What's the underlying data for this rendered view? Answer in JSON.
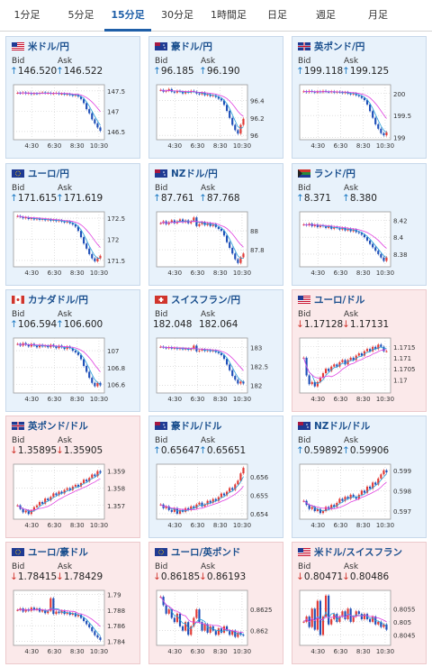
{
  "tabs": [
    {
      "label": "1分足",
      "active": false
    },
    {
      "label": "5分足",
      "active": false
    },
    {
      "label": "15分足",
      "active": true
    },
    {
      "label": "30分足",
      "active": false
    },
    {
      "label": "1時間足",
      "active": false
    },
    {
      "label": "日足",
      "active": false
    },
    {
      "label": "週足",
      "active": false
    },
    {
      "label": "月足",
      "active": false
    }
  ],
  "labels": {
    "bid": "Bid",
    "ask": "Ask"
  },
  "colors": {
    "up_bg": "#e8f2fb",
    "down_bg": "#fbe9ea",
    "up_arrow": "#1a78c2",
    "down_arrow": "#d0342c",
    "bull": "#e23a35",
    "bear": "#1f4fb8",
    "ma1": "#e040e0",
    "ma2": "#2aa0d8"
  },
  "x_ticks": [
    "4:30",
    "6:30",
    "8:30",
    "10:30"
  ],
  "pairs": [
    {
      "name": "米ドル/円",
      "flag": "us",
      "bid": "146.520",
      "ask": "146.522",
      "dir": "up",
      "y_ticks": [
        "147.5",
        "147",
        "146.5"
      ],
      "ylim": [
        146.3,
        147.65
      ],
      "series": [
        147.45,
        147.44,
        147.46,
        147.43,
        147.45,
        147.42,
        147.44,
        147.43,
        147.45,
        147.46,
        147.44,
        147.45,
        147.43,
        147.44,
        147.45,
        147.42,
        147.43,
        147.41,
        147.42,
        147.4,
        147.38,
        147.4,
        147.36,
        147.3,
        147.2,
        147.05,
        146.95,
        146.8,
        146.7,
        146.6,
        146.52
      ]
    },
    {
      "name": "豪ドル/円",
      "flag": "au",
      "bid": "96.185",
      "ask": "96.190",
      "dir": "up",
      "y_ticks": [
        "96.4",
        "96.2",
        "96"
      ],
      "ylim": [
        95.95,
        96.58
      ],
      "series": [
        96.52,
        96.5,
        96.51,
        96.53,
        96.5,
        96.49,
        96.51,
        96.5,
        96.48,
        96.5,
        96.49,
        96.51,
        96.5,
        96.48,
        96.47,
        96.49,
        96.46,
        96.47,
        96.45,
        96.46,
        96.44,
        96.42,
        96.4,
        96.35,
        96.28,
        96.2,
        96.12,
        96.06,
        96.02,
        96.12,
        96.19
      ]
    },
    {
      "name": "英ポンド/円",
      "flag": "gb",
      "bid": "199.118",
      "ask": "199.125",
      "dir": "up",
      "y_ticks": [
        "200",
        "199.5",
        "199"
      ],
      "ylim": [
        198.95,
        200.2
      ],
      "series": [
        200.05,
        200.03,
        200.06,
        200.04,
        200.02,
        200.05,
        200.03,
        200.06,
        200.04,
        200.03,
        200.05,
        200.02,
        200.04,
        200.03,
        200.01,
        200.03,
        200.0,
        199.98,
        200.0,
        199.96,
        199.94,
        199.9,
        199.85,
        199.75,
        199.6,
        199.45,
        199.3,
        199.2,
        199.1,
        199.05,
        199.12
      ]
    },
    {
      "name": "ユーロ/円",
      "flag": "eu",
      "bid": "171.615",
      "ask": "171.619",
      "dir": "up",
      "y_ticks": [
        "172.5",
        "172",
        "171.5"
      ],
      "ylim": [
        171.35,
        172.65
      ],
      "series": [
        172.55,
        172.53,
        172.5,
        172.52,
        172.48,
        172.5,
        172.47,
        172.49,
        172.46,
        172.48,
        172.45,
        172.47,
        172.44,
        172.46,
        172.43,
        172.45,
        172.42,
        172.4,
        172.42,
        172.38,
        172.35,
        172.3,
        172.2,
        172.05,
        171.9,
        171.78,
        171.65,
        171.55,
        171.48,
        171.55,
        171.61
      ]
    },
    {
      "name": "NZドル/円",
      "flag": "nz",
      "bid": "87.761",
      "ask": "87.768",
      "dir": "up",
      "y_ticks": [
        "88",
        "87.8"
      ],
      "ylim": [
        87.62,
        88.2
      ],
      "series": [
        88.08,
        88.1,
        88.07,
        88.09,
        88.11,
        88.08,
        88.1,
        88.12,
        88.09,
        88.11,
        88.08,
        88.1,
        88.14,
        88.05,
        88.07,
        88.09,
        88.06,
        88.08,
        88.05,
        88.07,
        88.04,
        88.02,
        88.0,
        87.95,
        87.88,
        87.82,
        87.76,
        87.7,
        87.66,
        87.72,
        87.76
      ]
    },
    {
      "name": "ランド/円",
      "flag": "za",
      "bid": "8.371",
      "ask": "8.380",
      "dir": "up",
      "y_ticks": [
        "8.42",
        "8.4",
        "8.38"
      ],
      "ylim": [
        8.365,
        8.43
      ],
      "series": [
        8.415,
        8.414,
        8.416,
        8.413,
        8.415,
        8.412,
        8.414,
        8.413,
        8.411,
        8.413,
        8.41,
        8.412,
        8.411,
        8.409,
        8.411,
        8.408,
        8.41,
        8.407,
        8.409,
        8.406,
        8.405,
        8.403,
        8.4,
        8.396,
        8.392,
        8.388,
        8.384,
        8.38,
        8.376,
        8.372,
        8.376
      ]
    },
    {
      "name": "カナダドル/円",
      "flag": "ca",
      "bid": "106.594",
      "ask": "106.600",
      "dir": "up",
      "y_ticks": [
        "107",
        "106.8",
        "106.6"
      ],
      "ylim": [
        106.5,
        107.15
      ],
      "series": [
        107.08,
        107.06,
        107.09,
        107.07,
        107.05,
        107.08,
        107.06,
        107.04,
        107.07,
        107.05,
        107.06,
        107.04,
        107.07,
        107.05,
        107.03,
        107.06,
        107.04,
        107.02,
        107.05,
        107.03,
        107.0,
        106.98,
        106.95,
        106.9,
        106.82,
        106.75,
        106.68,
        106.62,
        106.58,
        106.62,
        106.59
      ]
    },
    {
      "name": "スイスフラン/円",
      "flag": "ch",
      "bid": "182.048",
      "ask": "182.064",
      "dir": "none",
      "y_ticks": [
        "183",
        "182.5",
        "182"
      ],
      "ylim": [
        181.8,
        183.25
      ],
      "series": [
        183.02,
        183.0,
        182.98,
        183.01,
        182.97,
        182.99,
        182.96,
        182.98,
        182.95,
        182.97,
        182.94,
        182.96,
        183.05,
        182.9,
        182.92,
        182.95,
        182.91,
        182.93,
        182.9,
        182.92,
        182.88,
        182.85,
        182.8,
        182.7,
        182.55,
        182.4,
        182.25,
        182.15,
        182.05,
        182.1,
        182.05
      ]
    },
    {
      "name": "ユーロ/ドル",
      "flag": "us",
      "bid": "1.17128",
      "ask": "1.17131",
      "dir": "down",
      "y_ticks": [
        "1.1715",
        "1.171",
        "1.1705",
        "1.17"
      ],
      "ylim": [
        1.1694,
        1.1719
      ],
      "series": [
        1.171,
        1.1702,
        1.1698,
        1.1699,
        1.1697,
        1.1699,
        1.1701,
        1.1703,
        1.1705,
        1.1704,
        1.1706,
        1.1707,
        1.1706,
        1.1708,
        1.1709,
        1.1707,
        1.1709,
        1.171,
        1.1709,
        1.1711,
        1.1712,
        1.1711,
        1.1713,
        1.1714,
        1.1713,
        1.1715,
        1.1714,
        1.1716,
        1.1715,
        1.1713,
        1.1713
      ]
    },
    {
      "name": "英ポンド/ドル",
      "flag": "gb",
      "bid": "1.35895",
      "ask": "1.35905",
      "dir": "down",
      "y_ticks": [
        "1.359",
        "1.358",
        "1.357"
      ],
      "ylim": [
        1.3562,
        1.3594
      ],
      "series": [
        1.357,
        1.3568,
        1.3566,
        1.3567,
        1.3565,
        1.3567,
        1.3569,
        1.357,
        1.3572,
        1.3571,
        1.3574,
        1.3573,
        1.3575,
        1.3577,
        1.3576,
        1.3578,
        1.3577,
        1.3579,
        1.358,
        1.3579,
        1.3581,
        1.3582,
        1.3581,
        1.3583,
        1.3585,
        1.3584,
        1.3586,
        1.3588,
        1.3587,
        1.359,
        1.3589
      ]
    },
    {
      "name": "豪ドル/ドル",
      "flag": "au",
      "bid": "0.65647",
      "ask": "0.65651",
      "dir": "up",
      "y_ticks": [
        "0.656",
        "0.655",
        "0.654"
      ],
      "ylim": [
        0.6537,
        0.6567
      ],
      "series": [
        0.6545,
        0.6543,
        0.6544,
        0.6542,
        0.6541,
        0.6543,
        0.654,
        0.6542,
        0.6541,
        0.6543,
        0.6542,
        0.6544,
        0.6543,
        0.6545,
        0.6546,
        0.6544,
        0.6545,
        0.6547,
        0.6546,
        0.6548,
        0.6547,
        0.6549,
        0.6551,
        0.655,
        0.6552,
        0.6554,
        0.6553,
        0.6556,
        0.6558,
        0.6562,
        0.6565
      ]
    },
    {
      "name": "NZドル/ドル",
      "flag": "nz",
      "bid": "0.59892",
      "ask": "0.59906",
      "dir": "up",
      "y_ticks": [
        "0.599",
        "0.598",
        "0.597"
      ],
      "ylim": [
        0.5966,
        0.5993
      ],
      "series": [
        0.5975,
        0.5973,
        0.5971,
        0.5972,
        0.597,
        0.5971,
        0.5969,
        0.597,
        0.5972,
        0.5971,
        0.5973,
        0.5972,
        0.5974,
        0.5976,
        0.5975,
        0.5977,
        0.5976,
        0.5978,
        0.5977,
        0.5976,
        0.5978,
        0.598,
        0.5979,
        0.5982,
        0.5981,
        0.5984,
        0.5983,
        0.5986,
        0.5988,
        0.599,
        0.5989
      ]
    },
    {
      "name": "ユーロ/豪ドル",
      "flag": "eu",
      "bid": "1.78415",
      "ask": "1.78429",
      "dir": "down",
      "y_ticks": [
        "1.79",
        "1.788",
        "1.786",
        "1.784"
      ],
      "ylim": [
        1.7835,
        1.7905
      ],
      "series": [
        1.788,
        1.7882,
        1.7878,
        1.7881,
        1.7879,
        1.7883,
        1.788,
        1.7882,
        1.7878,
        1.788,
        1.7876,
        1.7879,
        1.7895,
        1.7875,
        1.7878,
        1.7876,
        1.7879,
        1.7875,
        1.7877,
        1.7874,
        1.7876,
        1.7872,
        1.7874,
        1.787,
        1.7866,
        1.7862,
        1.7858,
        1.7853,
        1.7848,
        1.7845,
        1.7842
      ]
    },
    {
      "name": "ユーロ/英ポンド",
      "flag": "eu",
      "bid": "0.86185",
      "ask": "0.86193",
      "dir": "down",
      "y_ticks": [
        "0.8625",
        "0.862"
      ],
      "ylim": [
        0.86165,
        0.86295
      ],
      "series": [
        0.8628,
        0.8626,
        0.8624,
        0.8625,
        0.8623,
        0.8622,
        0.8624,
        0.8621,
        0.862,
        0.8622,
        0.8619,
        0.8621,
        0.8623,
        0.8625,
        0.8622,
        0.862,
        0.86215,
        0.86195,
        0.8621,
        0.862,
        0.8619,
        0.86205,
        0.86195,
        0.8621,
        0.862,
        0.8619,
        0.862,
        0.86185,
        0.86195,
        0.8619,
        0.86189
      ]
    },
    {
      "name": "米ドル/スイスフラン",
      "flag": "us",
      "bid": "0.80471",
      "ask": "0.80486",
      "dir": "down",
      "y_ticks": [
        "0.8055",
        "0.805",
        "0.8045"
      ],
      "ylim": [
        0.8041,
        0.8062
      ],
      "series": [
        0.805,
        0.8052,
        0.8048,
        0.8055,
        0.8047,
        0.8058,
        0.8045,
        0.8052,
        0.806,
        0.8049,
        0.8051,
        0.8053,
        0.805,
        0.8052,
        0.8054,
        0.8051,
        0.8055,
        0.805,
        0.8052,
        0.8054,
        0.8053,
        0.8051,
        0.8053,
        0.8051,
        0.805,
        0.8052,
        0.8049,
        0.805,
        0.8048,
        0.8049,
        0.8047
      ]
    }
  ]
}
